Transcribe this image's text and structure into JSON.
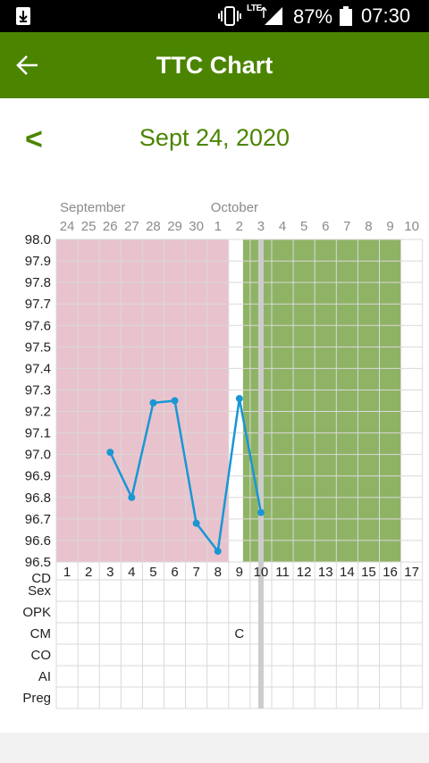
{
  "status_bar": {
    "battery_percent": "87%",
    "time": "07:30",
    "network": "LTE",
    "icons": [
      "download-icon",
      "vibrate-icon",
      "signal-icon",
      "battery-icon"
    ]
  },
  "app_bar": {
    "title": "TTC Chart",
    "back_icon": "arrow-left-icon",
    "color": "#4b8500"
  },
  "date_nav": {
    "prev_label": "<",
    "date": "Sept 24, 2020"
  },
  "chart_data": {
    "type": "line",
    "month_labels": [
      {
        "label": "September",
        "at_day": "24"
      },
      {
        "label": "October",
        "at_day": "1"
      }
    ],
    "dates": [
      "24",
      "25",
      "26",
      "27",
      "28",
      "29",
      "30",
      "1",
      "2",
      "3",
      "4",
      "5",
      "6",
      "7",
      "8",
      "9",
      "10"
    ],
    "cycle_days": [
      "1",
      "2",
      "3",
      "4",
      "5",
      "6",
      "7",
      "8",
      "9",
      "10",
      "11",
      "12",
      "13",
      "14",
      "15",
      "16",
      "17"
    ],
    "y_ticks": [
      "98.0",
      "97.9",
      "97.8",
      "97.7",
      "97.6",
      "97.5",
      "97.4",
      "97.3",
      "97.2",
      "97.1",
      "97.0",
      "96.9",
      "96.8",
      "96.7",
      "96.6",
      "96.5"
    ],
    "ylim": [
      96.5,
      98.0
    ],
    "temperatures": [
      {
        "cd": 3,
        "value": 97.01
      },
      {
        "cd": 4,
        "value": 96.8
      },
      {
        "cd": 5,
        "value": 97.24
      },
      {
        "cd": 6,
        "value": 97.25
      },
      {
        "cd": 7,
        "value": 96.68
      },
      {
        "cd": 8,
        "value": 96.55
      },
      {
        "cd": 9,
        "value": 97.26
      },
      {
        "cd": 10,
        "value": 96.73
      }
    ],
    "period_days": [
      1,
      8
    ],
    "fertile_days": [
      10,
      16
    ],
    "current_day": 10,
    "row_labels": [
      "CD",
      "Sex",
      "OPK",
      "CM",
      "CO",
      "AI",
      "Preg"
    ],
    "cells": [
      {
        "row": "CM",
        "cd": 9,
        "text": "C"
      }
    ],
    "colors": {
      "period": "#e8c3cd",
      "fertile": "#8fb365",
      "line": "#1a96d4",
      "grid": "#d9d9d9",
      "current_day": "#cccccc"
    },
    "grid": true
  }
}
